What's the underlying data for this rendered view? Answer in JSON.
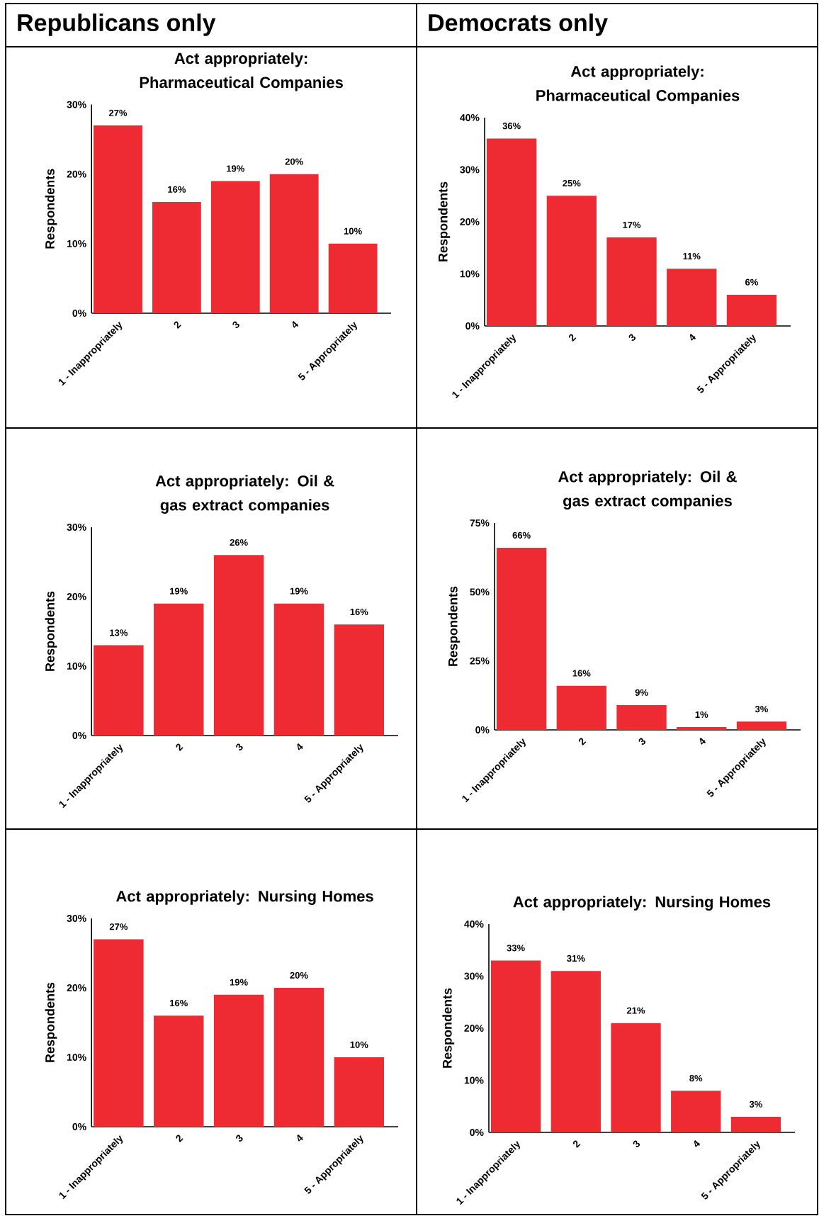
{
  "chart_data": [
    {
      "type": "bar",
      "annotations": [
        "Republicans only"
      ],
      "title": "Act appropriately: Pharmaceutical Companies",
      "ylabel": "Respondents",
      "categories": [
        "1 - Inappropriately",
        "2",
        "3",
        "4",
        "5 - Appropriately"
      ],
      "values": [
        27,
        16,
        19,
        20,
        10
      ],
      "value_labels": [
        "27%",
        "16%",
        "19%",
        "20%",
        "10%"
      ],
      "color": "#ee2a33",
      "ylim": [
        0,
        30
      ],
      "yticks": [
        {
          "value": 0,
          "label": "0%"
        },
        {
          "value": 10,
          "label": "10%"
        },
        {
          "value": 20,
          "label": "20%"
        },
        {
          "value": 30,
          "label": "30%"
        }
      ]
    },
    {
      "type": "bar",
      "annotations": [
        "Democrats only"
      ],
      "title": "Act appropriately: Pharmaceutical Companies",
      "ylabel": "Respondents",
      "categories": [
        "1 - Inappropriately",
        "2",
        "3",
        "4",
        "5 - Appropriately"
      ],
      "values": [
        36,
        25,
        17,
        11,
        6
      ],
      "value_labels": [
        "36%",
        "25%",
        "17%",
        "11%",
        "6%"
      ],
      "color": "#ee2a33",
      "ylim": [
        0,
        40
      ],
      "yticks": [
        {
          "value": 0,
          "label": "0%"
        },
        {
          "value": 10,
          "label": "10%"
        },
        {
          "value": 20,
          "label": "20%"
        },
        {
          "value": 30,
          "label": "30%"
        },
        {
          "value": 40,
          "label": "40%"
        }
      ]
    },
    {
      "type": "bar",
      "title": "Act appropriately: Oil & gas extract companies",
      "ylabel": "Respondents",
      "categories": [
        "1 - Inappropriately",
        "2",
        "3",
        "4",
        "5 - Appropriately"
      ],
      "values": [
        13,
        19,
        26,
        19,
        16
      ],
      "value_labels": [
        "13%",
        "19%",
        "26%",
        "19%",
        "16%"
      ],
      "color": "#ee2a33",
      "ylim": [
        0,
        30
      ],
      "yticks": [
        {
          "value": 0,
          "label": "0%"
        },
        {
          "value": 10,
          "label": "10%"
        },
        {
          "value": 20,
          "label": "20%"
        },
        {
          "value": 30,
          "label": "30%"
        }
      ]
    },
    {
      "type": "bar",
      "title": "Act appropriately: Oil & gas extract companies",
      "ylabel": "Respondents",
      "categories": [
        "1 - Inappropriately",
        "2",
        "3",
        "4",
        "5 - Appropriately"
      ],
      "values": [
        66,
        16,
        9,
        1,
        3
      ],
      "value_labels": [
        "66%",
        "16%",
        "9%",
        "1%",
        "3%"
      ],
      "color": "#ee2a33",
      "ylim": [
        0,
        75
      ],
      "yticks": [
        {
          "value": 0,
          "label": "0%"
        },
        {
          "value": 25,
          "label": "25%"
        },
        {
          "value": 50,
          "label": "50%"
        },
        {
          "value": 75,
          "label": "75%"
        }
      ]
    },
    {
      "type": "bar",
      "title": "Act appropriately: Nursing Homes",
      "ylabel": "Respondents",
      "categories": [
        "1 - Inappropriately",
        "2",
        "3",
        "4",
        "5 - Appropriately"
      ],
      "values": [
        27,
        16,
        19,
        20,
        10
      ],
      "value_labels": [
        "27%",
        "16%",
        "19%",
        "20%",
        "10%"
      ],
      "color": "#ee2a33",
      "ylim": [
        0,
        30
      ],
      "yticks": [
        {
          "value": 0,
          "label": "0%"
        },
        {
          "value": 10,
          "label": "10%"
        },
        {
          "value": 20,
          "label": "20%"
        },
        {
          "value": 30,
          "label": "30%"
        }
      ]
    },
    {
      "type": "bar",
      "title": "Act appropriately: Nursing Homes",
      "ylabel": "Respondents",
      "categories": [
        "1 - Inappropriately",
        "2",
        "3",
        "4",
        "5 - Appropriately"
      ],
      "values": [
        33,
        31,
        21,
        8,
        3
      ],
      "value_labels": [
        "33%",
        "31%",
        "21%",
        "8%",
        "3%"
      ],
      "color": "#ee2a33",
      "ylim": [
        0,
        40
      ],
      "yticks": [
        {
          "value": 0,
          "label": "0%"
        },
        {
          "value": 10,
          "label": "10%"
        },
        {
          "value": 20,
          "label": "20%"
        },
        {
          "value": 30,
          "label": "30%"
        },
        {
          "value": 40,
          "label": "40%"
        }
      ]
    }
  ]
}
